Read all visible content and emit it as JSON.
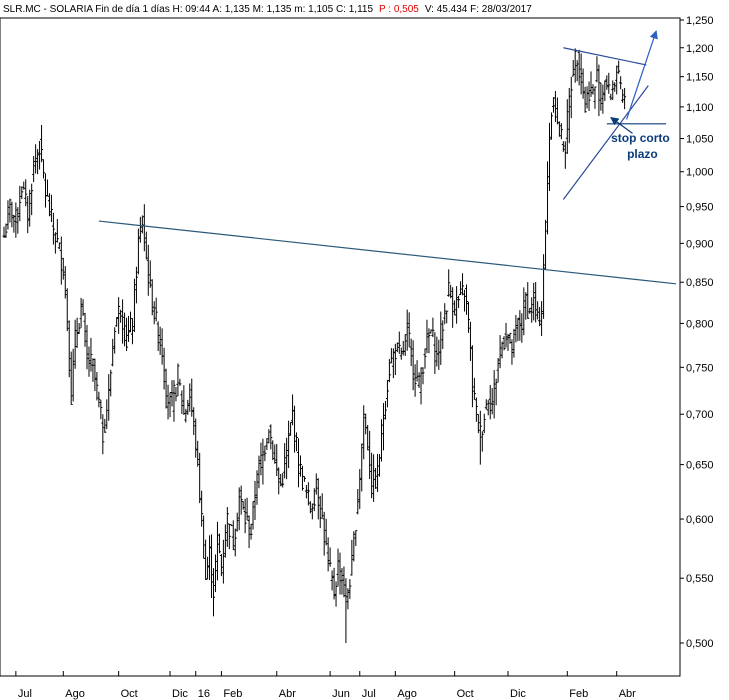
{
  "header": {
    "ticker": "SLR.MC - SOLARIA",
    "period": "Fin de día 1 días",
    "high": "H: 09:44",
    "open": "A: 1,135",
    "mid": "M: 1,135",
    "low": "m: 1,105",
    "close": "C: 1,115",
    "change": "P : 0,505",
    "volume": "V: 45.434",
    "date": "F: 28/03/2017"
  },
  "chart_data": {
    "type": "line",
    "chart_style": "ohlc-bars",
    "y_scale": "log",
    "ylim": [
      0.49,
      1.26
    ],
    "grid": false,
    "y_axis_side": "right",
    "y_ticks": [
      "1,250",
      "1,200",
      "1,150",
      "1,100",
      "1,050",
      "1,000",
      "0,950",
      "0,900",
      "0,850",
      "0,800",
      "0,750",
      "0,700",
      "0,650",
      "0,600",
      "0,550",
      "0,500"
    ],
    "x_ticks": [
      "Jul",
      "Ago",
      "Oct",
      "Dic",
      "16",
      "Feb",
      "Abr",
      "Jun",
      "Jul",
      "Ago",
      "Oct",
      "Dic",
      "Feb",
      "Abr"
    ],
    "x_tick_index": [
      6,
      30,
      58,
      84,
      97,
      110,
      138,
      165,
      180,
      198,
      228,
      255,
      285,
      310
    ],
    "total_index": 340,
    "close_anchors": [
      [
        0,
        0.91
      ],
      [
        3,
        0.95
      ],
      [
        6,
        0.93
      ],
      [
        9,
        0.98
      ],
      [
        12,
        0.94
      ],
      [
        15,
        1.01
      ],
      [
        18,
        1.04
      ],
      [
        21,
        0.97
      ],
      [
        24,
        0.93
      ],
      [
        27,
        0.9
      ],
      [
        30,
        0.87
      ],
      [
        32,
        0.8
      ],
      [
        34,
        0.72
      ],
      [
        36,
        0.78
      ],
      [
        39,
        0.82
      ],
      [
        42,
        0.76
      ],
      [
        45,
        0.75
      ],
      [
        48,
        0.71
      ],
      [
        50,
        0.68
      ],
      [
        53,
        0.72
      ],
      [
        56,
        0.8
      ],
      [
        59,
        0.82
      ],
      [
        62,
        0.78
      ],
      [
        65,
        0.8
      ],
      [
        68,
        0.9
      ],
      [
        70,
        0.93
      ],
      [
        72,
        0.88
      ],
      [
        74,
        0.84
      ],
      [
        77,
        0.8
      ],
      [
        80,
        0.77
      ],
      [
        82,
        0.72
      ],
      [
        85,
        0.71
      ],
      [
        88,
        0.74
      ],
      [
        91,
        0.7
      ],
      [
        94,
        0.72
      ],
      [
        97,
        0.67
      ],
      [
        100,
        0.6
      ],
      [
        102,
        0.55
      ],
      [
        104,
        0.57
      ],
      [
        106,
        0.54
      ],
      [
        108,
        0.58
      ],
      [
        110,
        0.56
      ],
      [
        113,
        0.6
      ],
      [
        116,
        0.58
      ],
      [
        119,
        0.62
      ],
      [
        122,
        0.6
      ],
      [
        125,
        0.59
      ],
      [
        128,
        0.64
      ],
      [
        131,
        0.66
      ],
      [
        134,
        0.69
      ],
      [
        137,
        0.65
      ],
      [
        140,
        0.63
      ],
      [
        143,
        0.66
      ],
      [
        146,
        0.7
      ],
      [
        149,
        0.65
      ],
      [
        152,
        0.63
      ],
      [
        155,
        0.61
      ],
      [
        158,
        0.63
      ],
      [
        161,
        0.6
      ],
      [
        164,
        0.56
      ],
      [
        167,
        0.54
      ],
      [
        169,
        0.56
      ],
      [
        171,
        0.55
      ],
      [
        173,
        0.53
      ],
      [
        176,
        0.56
      ],
      [
        178,
        0.6
      ],
      [
        180,
        0.64
      ],
      [
        182,
        0.7
      ],
      [
        184,
        0.67
      ],
      [
        186,
        0.63
      ],
      [
        189,
        0.64
      ],
      [
        192,
        0.7
      ],
      [
        195,
        0.75
      ],
      [
        198,
        0.77
      ],
      [
        201,
        0.76
      ],
      [
        204,
        0.79
      ],
      [
        207,
        0.75
      ],
      [
        210,
        0.73
      ],
      [
        213,
        0.77
      ],
      [
        216,
        0.79
      ],
      [
        219,
        0.76
      ],
      [
        222,
        0.8
      ],
      [
        225,
        0.84
      ],
      [
        228,
        0.82
      ],
      [
        231,
        0.83
      ],
      [
        233,
        0.84
      ],
      [
        235,
        0.8
      ],
      [
        237,
        0.73
      ],
      [
        239,
        0.7
      ],
      [
        241,
        0.68
      ],
      [
        243,
        0.7
      ],
      [
        245,
        0.72
      ],
      [
        247,
        0.71
      ],
      [
        249,
        0.74
      ],
      [
        251,
        0.77
      ],
      [
        254,
        0.79
      ],
      [
        257,
        0.77
      ],
      [
        260,
        0.8
      ],
      [
        262,
        0.8
      ],
      [
        264,
        0.83
      ],
      [
        266,
        0.81
      ],
      [
        268,
        0.83
      ],
      [
        270,
        0.8
      ],
      [
        272,
        0.82
      ],
      [
        274,
        0.92
      ],
      [
        276,
        1.06
      ],
      [
        278,
        1.12
      ],
      [
        280,
        1.07
      ],
      [
        282,
        1.05
      ],
      [
        284,
        1.04
      ],
      [
        286,
        1.11
      ],
      [
        288,
        1.17
      ],
      [
        290,
        1.19
      ],
      [
        292,
        1.15
      ],
      [
        294,
        1.1
      ],
      [
        296,
        1.13
      ],
      [
        298,
        1.12
      ],
      [
        300,
        1.15
      ],
      [
        302,
        1.11
      ],
      [
        304,
        1.15
      ],
      [
        306,
        1.12
      ],
      [
        308,
        1.13
      ],
      [
        310,
        1.16
      ],
      [
        312,
        1.12
      ],
      [
        314,
        1.11
      ]
    ],
    "lows": [
      [
        34,
        0.71
      ],
      [
        50,
        0.66
      ],
      [
        106,
        0.52
      ],
      [
        173,
        0.5
      ],
      [
        241,
        0.65
      ]
    ],
    "trendlines": [
      {
        "from": [
          48,
          0.93
        ],
        "to": [
          340,
          0.848
        ],
        "color": "#2a5a7a"
      },
      {
        "from": [
          283,
          1.2
        ],
        "to": [
          325,
          1.17
        ],
        "color": "#2b4a9a"
      },
      {
        "from": [
          283,
          0.96
        ],
        "to": [
          326,
          1.135
        ],
        "color": "#2b4a9a"
      },
      {
        "from": [
          305,
          1.073
        ],
        "to": [
          335,
          1.073
        ],
        "color": "#0b3c7a"
      }
    ],
    "arrows": [
      {
        "from": [
          315,
          1.08
        ],
        "to": [
          330,
          1.23
        ],
        "color": "#2b5fc0"
      },
      {
        "from": [
          318,
          1.058
        ],
        "to": [
          307,
          1.083
        ],
        "color": "#0b3c7a"
      }
    ],
    "annotation": {
      "line1": "stop corto",
      "line2": "plazo",
      "x": 322,
      "y": 1.045
    }
  }
}
